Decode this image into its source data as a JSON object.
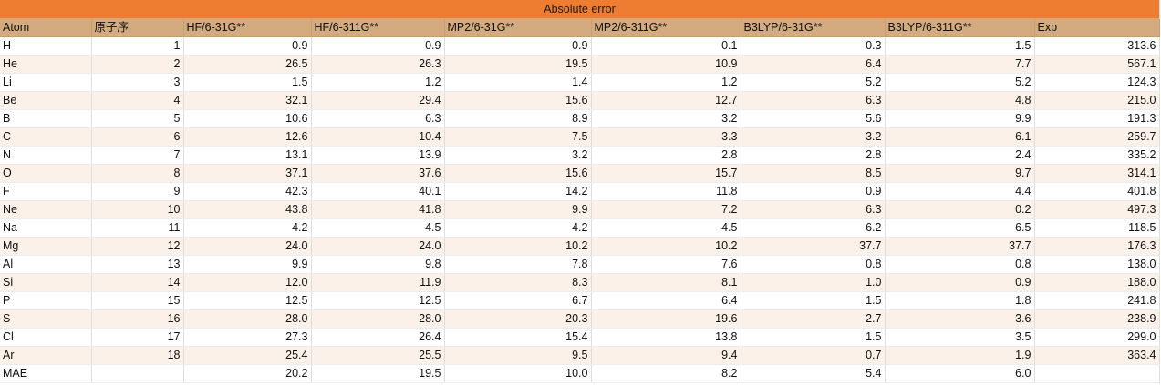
{
  "colors": {
    "banner": "#ef7d31",
    "header": "#d4ab7e",
    "band": "#fcf1e8"
  },
  "banner_title": "Absolute error",
  "columns": [
    "Atom",
    "原子序",
    "HF/6-31G**",
    "HF/6-311G**",
    "MP2/6-31G**",
    "MP2/6-311G**",
    "B3LYP/6-31G**",
    "B3LYP/6-311G**",
    "Exp"
  ],
  "rows": [
    [
      "H",
      "1",
      "0.9",
      "0.9",
      "0.9",
      "0.1",
      "0.3",
      "1.5",
      "313.6"
    ],
    [
      "He",
      "2",
      "26.5",
      "26.3",
      "19.5",
      "10.9",
      "6.4",
      "7.7",
      "567.1"
    ],
    [
      "Li",
      "3",
      "1.5",
      "1.2",
      "1.4",
      "1.2",
      "5.2",
      "5.2",
      "124.3"
    ],
    [
      "Be",
      "4",
      "32.1",
      "29.4",
      "15.6",
      "12.7",
      "6.3",
      "4.8",
      "215.0"
    ],
    [
      "B",
      "5",
      "10.6",
      "6.3",
      "8.9",
      "3.2",
      "5.6",
      "9.9",
      "191.3"
    ],
    [
      "C",
      "6",
      "12.6",
      "10.4",
      "7.5",
      "3.3",
      "3.2",
      "6.1",
      "259.7"
    ],
    [
      "N",
      "7",
      "13.1",
      "13.9",
      "3.2",
      "2.8",
      "2.8",
      "2.4",
      "335.2"
    ],
    [
      "O",
      "8",
      "37.1",
      "37.6",
      "15.6",
      "15.7",
      "8.5",
      "9.7",
      "314.1"
    ],
    [
      "F",
      "9",
      "42.3",
      "40.1",
      "14.2",
      "11.8",
      "0.9",
      "4.4",
      "401.8"
    ],
    [
      "Ne",
      "10",
      "43.8",
      "41.8",
      "9.9",
      "7.2",
      "6.3",
      "0.2",
      "497.3"
    ],
    [
      "Na",
      "11",
      "4.2",
      "4.5",
      "4.2",
      "4.5",
      "6.2",
      "6.5",
      "118.5"
    ],
    [
      "Mg",
      "12",
      "24.0",
      "24.0",
      "10.2",
      "10.2",
      "37.7",
      "37.7",
      "176.3"
    ],
    [
      "Al",
      "13",
      "9.9",
      "9.8",
      "7.8",
      "7.6",
      "0.8",
      "0.8",
      "138.0"
    ],
    [
      "Si",
      "14",
      "12.0",
      "11.9",
      "8.3",
      "8.1",
      "1.0",
      "0.9",
      "188.0"
    ],
    [
      "P",
      "15",
      "12.5",
      "12.5",
      "6.7",
      "6.4",
      "1.5",
      "1.8",
      "241.8"
    ],
    [
      "S",
      "16",
      "28.0",
      "28.0",
      "20.3",
      "19.6",
      "2.7",
      "3.6",
      "238.9"
    ],
    [
      "Cl",
      "17",
      "27.3",
      "26.4",
      "15.4",
      "13.8",
      "1.5",
      "3.5",
      "299.0"
    ],
    [
      "Ar",
      "18",
      "25.4",
      "25.5",
      "9.5",
      "9.4",
      "0.7",
      "1.9",
      "363.4"
    ]
  ],
  "mae_row": [
    "MAE",
    "",
    "20.2",
    "19.5",
    "10.0",
    "8.2",
    "5.4",
    "6.0",
    ""
  ]
}
